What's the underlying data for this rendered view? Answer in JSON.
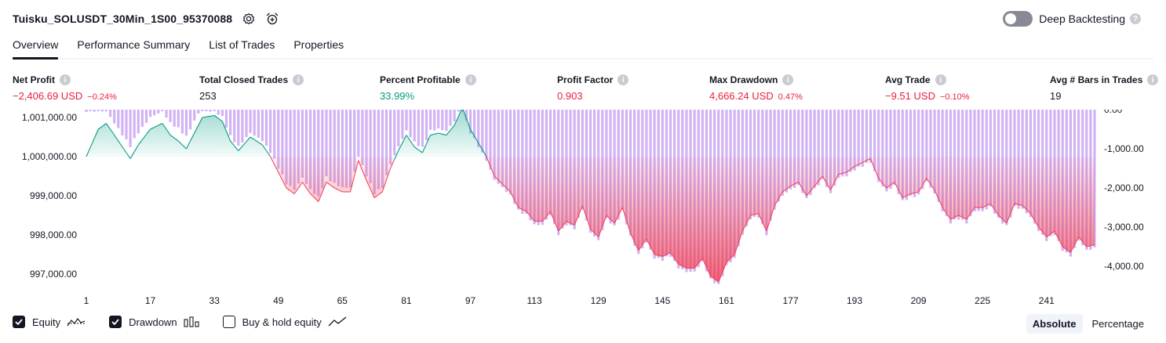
{
  "header": {
    "title": "Tuisku_SOLUSDT_30Min_1S00_95370088",
    "deep_label": "Deep Backtesting"
  },
  "tabs": [
    "Overview",
    "Performance Summary",
    "List of Trades",
    "Properties"
  ],
  "metrics": [
    {
      "label": "Net Profit",
      "value": "−2,406.69 USD",
      "sub": "−0.24%"
    },
    {
      "label": "Total Closed Trades",
      "value": "253",
      "sub": ""
    },
    {
      "label": "Percent Profitable",
      "value": "33.99%",
      "sub": ""
    },
    {
      "label": "Profit Factor",
      "value": "0.903",
      "sub": ""
    },
    {
      "label": "Max Drawdown",
      "value": "4,666.24 USD",
      "sub": "0.47%"
    },
    {
      "label": "Avg Trade",
      "value": "−9.51 USD",
      "sub": "−0.10%"
    },
    {
      "label": "Avg # Bars in Trades",
      "value": "19",
      "sub": ""
    }
  ],
  "legend": {
    "equity": "Equity",
    "drawdown": "Drawdown",
    "buyhold": "Buy & hold equity"
  },
  "modes": {
    "absolute": "Absolute",
    "percentage": "Percentage"
  },
  "colors": {
    "negative": "#e91e3e",
    "positive": "#089981",
    "drawdown_bar": "#c9a5f2",
    "equity_line": "#f2435f"
  },
  "chart_data": {
    "type": "area",
    "x_ticks": [
      "1",
      "17",
      "33",
      "49",
      "65",
      "81",
      "97",
      "113",
      "129",
      "145",
      "161",
      "177",
      "193",
      "209",
      "225",
      "241"
    ],
    "y_left_ticks": [
      "1,001,000.00",
      "1,000,000.00",
      "999,000.00",
      "998,000.00",
      "997,000.00"
    ],
    "y_right_ticks": [
      "0.00",
      "-1,000.00",
      "-2,000.00",
      "-3,000.00",
      "-4,000.00"
    ],
    "y_left_range": [
      996800,
      1001200
    ],
    "y_right_range": [
      -4400,
      0
    ],
    "x_range": [
      1,
      253
    ],
    "baseline": 1000000,
    "equity_keypoints": [
      [
        1,
        1000000
      ],
      [
        4,
        1000700
      ],
      [
        6,
        1000850
      ],
      [
        9,
        1000400
      ],
      [
        12,
        999950
      ],
      [
        14,
        1000300
      ],
      [
        17,
        1000700
      ],
      [
        20,
        1000850
      ],
      [
        22,
        1000550
      ],
      [
        24,
        1000400
      ],
      [
        26,
        1000200
      ],
      [
        28,
        1000600
      ],
      [
        30,
        1001000
      ],
      [
        33,
        1001050
      ],
      [
        35,
        1000900
      ],
      [
        37,
        1000400
      ],
      [
        39,
        1000150
      ],
      [
        42,
        1000500
      ],
      [
        45,
        1000300
      ],
      [
        47,
        1000000
      ],
      [
        49,
        999600
      ],
      [
        51,
        999200
      ],
      [
        53,
        999050
      ],
      [
        55,
        999350
      ],
      [
        57,
        999050
      ],
      [
        59,
        998850
      ],
      [
        61,
        999350
      ],
      [
        63,
        999200
      ],
      [
        65,
        999100
      ],
      [
        67,
        999100
      ],
      [
        69,
        999900
      ],
      [
        71,
        999400
      ],
      [
        73,
        998950
      ],
      [
        75,
        999100
      ],
      [
        77,
        999700
      ],
      [
        79,
        1000150
      ],
      [
        81,
        1000550
      ],
      [
        83,
        1000250
      ],
      [
        85,
        1000100
      ],
      [
        87,
        1000550
      ],
      [
        89,
        1000600
      ],
      [
        91,
        1000550
      ],
      [
        93,
        1000800
      ],
      [
        95,
        1001250
      ],
      [
        97,
        1000700
      ],
      [
        99,
        1000350
      ],
      [
        101,
        1000000
      ],
      [
        103,
        999500
      ],
      [
        105,
        999300
      ],
      [
        107,
        999100
      ],
      [
        109,
        998700
      ],
      [
        111,
        998600
      ],
      [
        113,
        998350
      ],
      [
        115,
        998350
      ],
      [
        117,
        998600
      ],
      [
        119,
        998100
      ],
      [
        121,
        998350
      ],
      [
        123,
        998250
      ],
      [
        125,
        998750
      ],
      [
        127,
        998150
      ],
      [
        129,
        997950
      ],
      [
        131,
        998500
      ],
      [
        133,
        998300
      ],
      [
        135,
        998700
      ],
      [
        137,
        998050
      ],
      [
        139,
        997600
      ],
      [
        141,
        997900
      ],
      [
        143,
        997500
      ],
      [
        145,
        997450
      ],
      [
        147,
        997550
      ],
      [
        149,
        997250
      ],
      [
        151,
        997150
      ],
      [
        153,
        997150
      ],
      [
        155,
        997400
      ],
      [
        157,
        996950
      ],
      [
        159,
        996800
      ],
      [
        161,
        997300
      ],
      [
        163,
        997500
      ],
      [
        165,
        998100
      ],
      [
        167,
        998500
      ],
      [
        169,
        998550
      ],
      [
        171,
        998100
      ],
      [
        173,
        998750
      ],
      [
        175,
        999100
      ],
      [
        177,
        999250
      ],
      [
        179,
        999350
      ],
      [
        181,
        999000
      ],
      [
        183,
        999250
      ],
      [
        185,
        999500
      ],
      [
        187,
        999150
      ],
      [
        189,
        999550
      ],
      [
        191,
        999600
      ],
      [
        193,
        999750
      ],
      [
        195,
        999850
      ],
      [
        197,
        999950
      ],
      [
        199,
        999450
      ],
      [
        201,
        999200
      ],
      [
        203,
        999350
      ],
      [
        205,
        998950
      ],
      [
        207,
        999050
      ],
      [
        209,
        999100
      ],
      [
        211,
        999450
      ],
      [
        213,
        999150
      ],
      [
        215,
        998700
      ],
      [
        217,
        998400
      ],
      [
        219,
        998500
      ],
      [
        221,
        998400
      ],
      [
        223,
        998700
      ],
      [
        225,
        998700
      ],
      [
        227,
        998800
      ],
      [
        229,
        998500
      ],
      [
        231,
        998300
      ],
      [
        233,
        998800
      ],
      [
        235,
        998750
      ],
      [
        237,
        998550
      ],
      [
        239,
        998200
      ],
      [
        241,
        997950
      ],
      [
        243,
        998100
      ],
      [
        245,
        997700
      ],
      [
        247,
        997550
      ],
      [
        249,
        997950
      ],
      [
        251,
        997700
      ],
      [
        253,
        997750
      ]
    ]
  }
}
